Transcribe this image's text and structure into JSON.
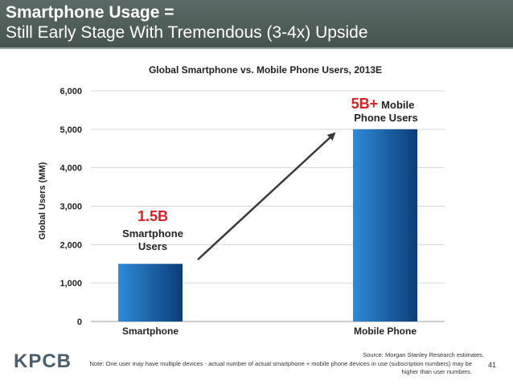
{
  "header": {
    "title": "Smartphone Usage =",
    "subtitle": "Still Early Stage With Tremendous (3-4x) Upside"
  },
  "chart_data": {
    "type": "bar",
    "title": "Global Smartphone vs. Mobile Phone Users, 2013E",
    "xlabel": "",
    "ylabel": "Global Users (MM)",
    "categories": [
      "Smartphone",
      "Mobile Phone"
    ],
    "values": [
      1500,
      5000
    ],
    "ylim": [
      0,
      6000
    ],
    "yticks": [
      "0",
      "1,000",
      "2,000",
      "3,000",
      "4,000",
      "5,000",
      "6,000"
    ],
    "grid": true,
    "annotations": {
      "smartphone": {
        "value": "1.5B",
        "text_line1": "Smartphone",
        "text_line2": "Users"
      },
      "mobile": {
        "value": "5B+",
        "text_line1": "Mobile",
        "text_line2": "Phone Users"
      }
    },
    "colors": {
      "bar_light": "#2f8ad8",
      "bar_dark": "#0b3d78",
      "accent": "#e31b23",
      "arrow": "#3a3a3a"
    }
  },
  "footer": {
    "logo": "KPCB",
    "source": "Source: Morgan Stanley Research estimates.",
    "note": "Note: One user may have multiple devices - actual number of actual smartphone + mobile phone devices in use (subscription numbers) may be higher than user numbers.",
    "page": "41"
  }
}
